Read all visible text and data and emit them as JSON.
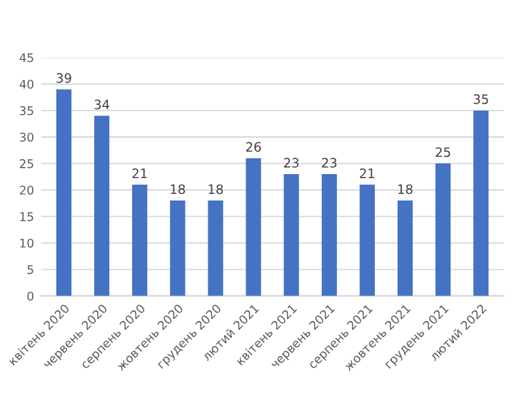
{
  "chart_data": {
    "type": "bar",
    "categories": [
      "квітень 2020",
      "червень 2020",
      "серпень 2020",
      "жовтень 2020",
      "грудень 2020",
      "лютий 2021",
      "квітень 2021",
      "червень 2021",
      "серпень 2021",
      "жовтень 2021",
      "грудень 2021",
      "лютий 2022"
    ],
    "values": [
      39,
      34,
      21,
      18,
      18,
      26,
      23,
      23,
      21,
      18,
      25,
      35
    ],
    "color": "#4472c4",
    "ylim": [
      0,
      45
    ],
    "yticks": [
      0,
      5,
      10,
      15,
      20,
      25,
      30,
      35,
      40,
      45
    ],
    "grid": "y",
    "data_labels": true
  }
}
